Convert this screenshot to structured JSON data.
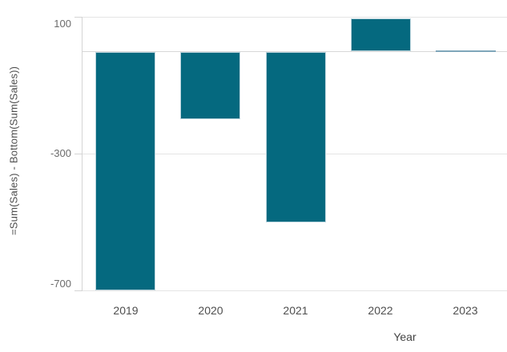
{
  "chart_data": {
    "type": "bar",
    "categories": [
      "2019",
      "2020",
      "2021",
      "2022",
      "2023"
    ],
    "values": [
      -700,
      -200,
      -500,
      95,
      0
    ],
    "title": "",
    "xlabel": "Year",
    "ylabel": "=Sum(Sales) - Bottom(Sum(Sales))",
    "ylim": [
      -700,
      100
    ],
    "yticks": [
      100,
      -300,
      -700
    ],
    "grid": true,
    "legend": false,
    "zero_line": true
  },
  "axes": {
    "x_title": "Year",
    "y_title": "=Sum(Sales) - Bottom(Sum(Sales))",
    "y_tick_labels": [
      "100",
      "-300",
      "-700"
    ],
    "x_tick_labels": [
      "2019",
      "2020",
      "2021",
      "2022",
      "2023"
    ]
  },
  "colors": {
    "bar_fill": "#05697F",
    "bar_border": "#BCD5DE",
    "zero_bar": "#7FA6BA",
    "gridline": "#E4E4E4",
    "zero_line_color": "#D7D7D7",
    "axis_line": "#D4D4D4",
    "tick_text": "#6B6B6B",
    "label_text": "#4E4E4E",
    "background": "#FFFFFF"
  }
}
